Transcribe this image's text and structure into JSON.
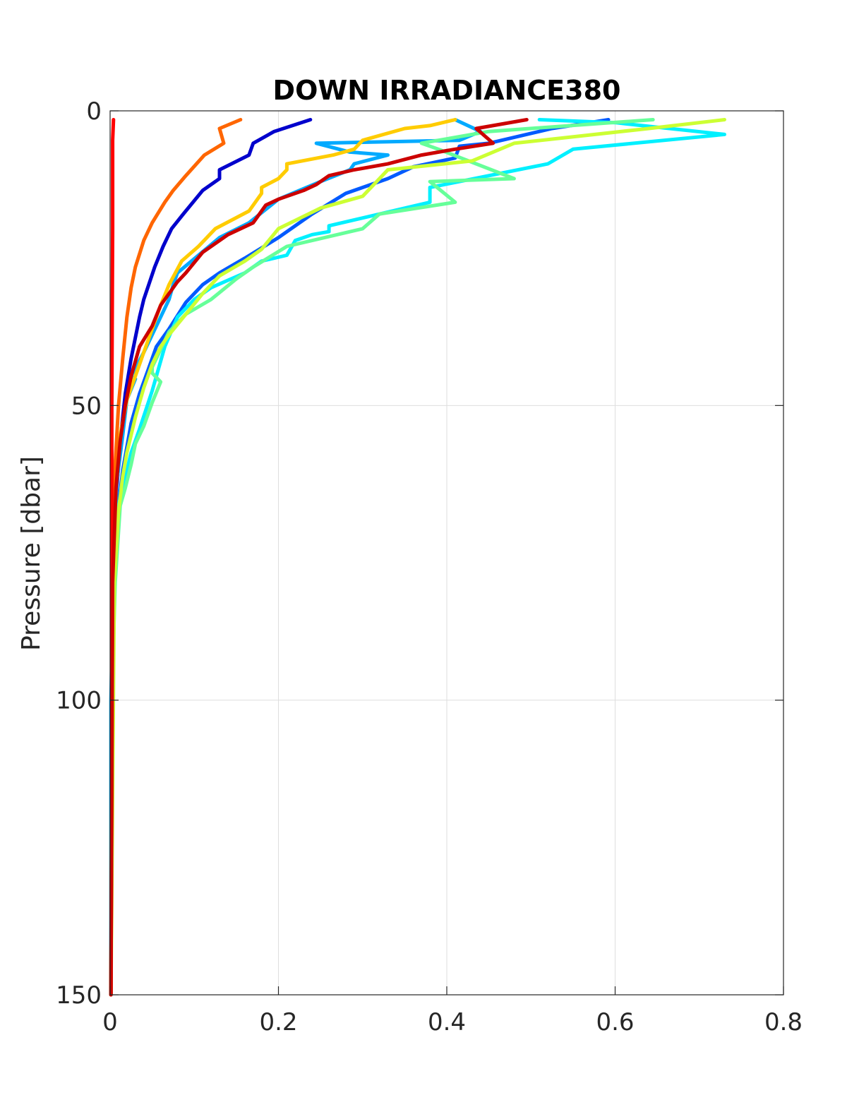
{
  "chart_data": {
    "type": "line",
    "title": "DOWN IRRADIANCE380",
    "xlabel": "",
    "ylabel": "Pressure [dbar]",
    "xlim": [
      0,
      0.8
    ],
    "ylim": [
      0,
      150
    ],
    "y_reversed": true,
    "grid": true,
    "legend": "none",
    "x_ticks": [
      "0",
      "0.2",
      "0.4",
      "0.6",
      "0.8"
    ],
    "y_ticks": [
      "0",
      "50",
      "100",
      "150"
    ],
    "series": [
      {
        "color": "#0000cc",
        "points": [
          [
            0.238,
            1.5
          ],
          [
            0.195,
            3.5
          ],
          [
            0.17,
            5.5
          ],
          [
            0.165,
            7.5
          ],
          [
            0.13,
            10
          ],
          [
            0.13,
            11.5
          ],
          [
            0.11,
            13.5
          ],
          [
            0.087,
            17.5
          ],
          [
            0.073,
            20
          ],
          [
            0.063,
            23
          ],
          [
            0.053,
            26.5
          ],
          [
            0.04,
            32
          ],
          [
            0.035,
            35
          ],
          [
            0.025,
            42
          ],
          [
            0.018,
            48
          ],
          [
            0.012,
            56
          ],
          [
            0.008,
            64
          ],
          [
            0.004,
            78
          ],
          [
            0.002,
            100
          ],
          [
            0.001,
            150
          ]
        ]
      },
      {
        "color": "#005aff",
        "points": [
          [
            0.592,
            1.5
          ],
          [
            0.525,
            3
          ],
          [
            0.45,
            5.5
          ],
          [
            0.415,
            6
          ],
          [
            0.41,
            8
          ],
          [
            0.36,
            9.5
          ],
          [
            0.33,
            11.5
          ],
          [
            0.3,
            13
          ],
          [
            0.28,
            14
          ],
          [
            0.24,
            17.5
          ],
          [
            0.22,
            19.5
          ],
          [
            0.2,
            21.5
          ],
          [
            0.16,
            25
          ],
          [
            0.13,
            27.5
          ],
          [
            0.11,
            29.5
          ],
          [
            0.09,
            32.5
          ],
          [
            0.07,
            37
          ],
          [
            0.055,
            40
          ],
          [
            0.045,
            44
          ],
          [
            0.035,
            48
          ],
          [
            0.025,
            53
          ],
          [
            0.015,
            61
          ],
          [
            0.006,
            72
          ],
          [
            0.002,
            95
          ],
          [
            0.001,
            150
          ]
        ]
      },
      {
        "color": "#00aaff",
        "points": [
          [
            0.41,
            1.5
          ],
          [
            0.44,
            3.5
          ],
          [
            0.415,
            5
          ],
          [
            0.245,
            5.5
          ],
          [
            0.285,
            7
          ],
          [
            0.33,
            7.5
          ],
          [
            0.29,
            9
          ],
          [
            0.285,
            10
          ],
          [
            0.25,
            12
          ],
          [
            0.2,
            15
          ],
          [
            0.165,
            19
          ],
          [
            0.13,
            21.5
          ],
          [
            0.08,
            27.5
          ],
          [
            0.075,
            29.5
          ],
          [
            0.07,
            32
          ],
          [
            0.06,
            35
          ],
          [
            0.05,
            38
          ],
          [
            0.04,
            41
          ],
          [
            0.025,
            45
          ],
          [
            0.03,
            45.5
          ],
          [
            0.02,
            49
          ],
          [
            0.015,
            55
          ],
          [
            0.008,
            63
          ],
          [
            0.004,
            78
          ],
          [
            0.001,
            100
          ],
          [
            0.001,
            150
          ]
        ]
      },
      {
        "color": "#00f0ff",
        "points": [
          [
            0.51,
            1.5
          ],
          [
            0.6,
            2
          ],
          [
            0.73,
            4
          ],
          [
            0.55,
            6.5
          ],
          [
            0.52,
            9
          ],
          [
            0.38,
            13
          ],
          [
            0.38,
            15.5
          ],
          [
            0.26,
            19.5
          ],
          [
            0.26,
            20.5
          ],
          [
            0.24,
            21
          ],
          [
            0.22,
            22
          ],
          [
            0.21,
            24.5
          ],
          [
            0.18,
            25.5
          ],
          [
            0.16,
            27.5
          ],
          [
            0.12,
            30
          ],
          [
            0.1,
            32
          ],
          [
            0.08,
            35
          ],
          [
            0.065,
            40
          ],
          [
            0.055,
            45
          ],
          [
            0.05,
            47.5
          ],
          [
            0.035,
            54
          ],
          [
            0.025,
            58
          ],
          [
            0.02,
            61
          ],
          [
            0.015,
            64
          ],
          [
            0.01,
            67
          ],
          [
            0.005,
            80
          ],
          [
            0.002,
            100
          ],
          [
            0.001,
            150
          ]
        ]
      },
      {
        "color": "#66ff99",
        "points": [
          [
            0.645,
            1.5
          ],
          [
            0.45,
            3.5
          ],
          [
            0.37,
            5.5
          ],
          [
            0.39,
            6.5
          ],
          [
            0.48,
            11.5
          ],
          [
            0.38,
            12
          ],
          [
            0.41,
            15.5
          ],
          [
            0.32,
            17.5
          ],
          [
            0.3,
            20
          ],
          [
            0.21,
            23
          ],
          [
            0.17,
            26.5
          ],
          [
            0.15,
            28.5
          ],
          [
            0.12,
            32
          ],
          [
            0.09,
            34.5
          ],
          [
            0.07,
            37.5
          ],
          [
            0.05,
            43.5
          ],
          [
            0.05,
            44.5
          ],
          [
            0.06,
            46
          ],
          [
            0.05,
            49.5
          ],
          [
            0.04,
            53.5
          ],
          [
            0.03,
            56.5
          ],
          [
            0.025,
            60
          ],
          [
            0.018,
            64
          ],
          [
            0.012,
            67
          ],
          [
            0.006,
            80
          ],
          [
            0.002,
            100
          ],
          [
            0.001,
            150
          ]
        ]
      },
      {
        "color": "#ccff33",
        "points": [
          [
            0.73,
            1.5
          ],
          [
            0.64,
            3
          ],
          [
            0.48,
            5.5
          ],
          [
            0.43,
            8.5
          ],
          [
            0.33,
            10
          ],
          [
            0.3,
            14.5
          ],
          [
            0.25,
            16.5
          ],
          [
            0.2,
            20
          ],
          [
            0.18,
            23.5
          ],
          [
            0.16,
            25.5
          ],
          [
            0.13,
            28
          ],
          [
            0.11,
            31
          ],
          [
            0.09,
            34.5
          ],
          [
            0.07,
            38
          ],
          [
            0.06,
            40
          ],
          [
            0.05,
            43
          ],
          [
            0.04,
            47
          ],
          [
            0.03,
            52
          ],
          [
            0.02,
            58
          ],
          [
            0.015,
            62
          ],
          [
            0.01,
            68
          ],
          [
            0.005,
            80
          ],
          [
            0.001,
            150
          ]
        ]
      },
      {
        "color": "#ffcc00",
        "points": [
          [
            0.41,
            1.5
          ],
          [
            0.38,
            2.5
          ],
          [
            0.35,
            3
          ],
          [
            0.3,
            5
          ],
          [
            0.29,
            6.5
          ],
          [
            0.265,
            7.5
          ],
          [
            0.21,
            9
          ],
          [
            0.21,
            10
          ],
          [
            0.2,
            11.5
          ],
          [
            0.18,
            13
          ],
          [
            0.18,
            14
          ],
          [
            0.165,
            17
          ],
          [
            0.125,
            20
          ],
          [
            0.105,
            23
          ],
          [
            0.085,
            25.5
          ],
          [
            0.07,
            29.5
          ],
          [
            0.06,
            33
          ],
          [
            0.05,
            37
          ],
          [
            0.04,
            41
          ],
          [
            0.03,
            45
          ],
          [
            0.02,
            49
          ],
          [
            0.012,
            55
          ],
          [
            0.007,
            63
          ],
          [
            0.003,
            80
          ],
          [
            0.001,
            150
          ]
        ]
      },
      {
        "color": "#ff6600",
        "points": [
          [
            0.155,
            1.5
          ],
          [
            0.13,
            3
          ],
          [
            0.135,
            5.5
          ],
          [
            0.112,
            7.5
          ],
          [
            0.09,
            11
          ],
          [
            0.075,
            13.5
          ],
          [
            0.065,
            15.5
          ],
          [
            0.05,
            19
          ],
          [
            0.04,
            22
          ],
          [
            0.03,
            26.5
          ],
          [
            0.025,
            30
          ],
          [
            0.02,
            35
          ],
          [
            0.015,
            42
          ],
          [
            0.01,
            50
          ],
          [
            0.006,
            60
          ],
          [
            0.003,
            75
          ],
          [
            0.001,
            150
          ]
        ]
      },
      {
        "color": "#ff0000",
        "points": [
          [
            0.004,
            1.5
          ],
          [
            0.003,
            5
          ],
          [
            0.003,
            20
          ],
          [
            0.002,
            50
          ],
          [
            0.002,
            100
          ],
          [
            0.001,
            150
          ]
        ]
      },
      {
        "color": "#cc0000",
        "points": [
          [
            0.495,
            1.5
          ],
          [
            0.435,
            3
          ],
          [
            0.455,
            5.5
          ],
          [
            0.41,
            6.5
          ],
          [
            0.37,
            7.5
          ],
          [
            0.33,
            9
          ],
          [
            0.29,
            10
          ],
          [
            0.26,
            11
          ],
          [
            0.245,
            12.5
          ],
          [
            0.23,
            13.5
          ],
          [
            0.2,
            15
          ],
          [
            0.185,
            16
          ],
          [
            0.17,
            19
          ],
          [
            0.14,
            21
          ],
          [
            0.11,
            24
          ],
          [
            0.09,
            27.5
          ],
          [
            0.08,
            29
          ],
          [
            0.06,
            33
          ],
          [
            0.05,
            36.5
          ],
          [
            0.035,
            40
          ],
          [
            0.025,
            45
          ],
          [
            0.018,
            50
          ],
          [
            0.012,
            56
          ],
          [
            0.007,
            64
          ],
          [
            0.003,
            80
          ],
          [
            0.001,
            150
          ]
        ]
      }
    ]
  }
}
